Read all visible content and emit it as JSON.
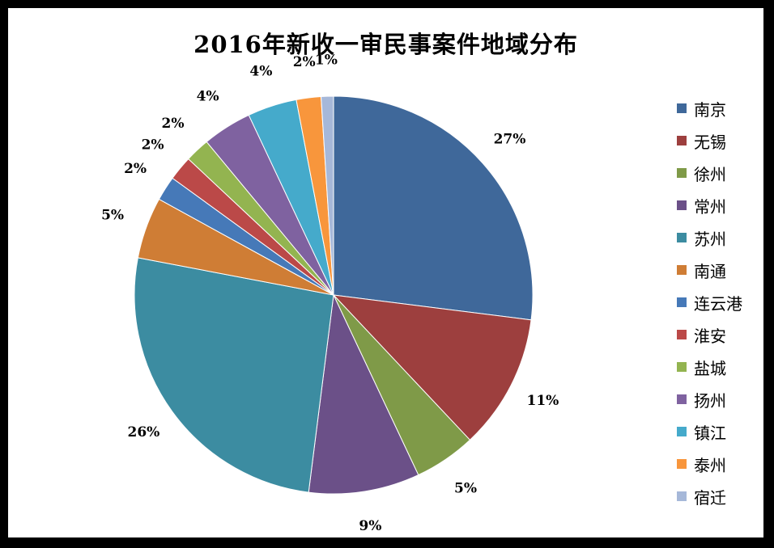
{
  "chart_data": {
    "type": "pie",
    "title": "2016年新收一审民事案件地域分布",
    "legend_position": "right",
    "categories": [
      "南京",
      "无锡",
      "徐州",
      "常州",
      "苏州",
      "南通",
      "连云港",
      "淮安",
      "盐城",
      "扬州",
      "镇江",
      "泰州",
      "宿迁"
    ],
    "values": [
      27,
      11,
      5,
      9,
      26,
      5,
      2,
      2,
      2,
      4,
      4,
      2,
      1
    ],
    "labels": [
      "27%",
      "11%",
      "5%",
      "9%",
      "26%",
      "5%",
      "2%",
      "2%",
      "2%",
      "4%",
      "4%",
      "2%",
      "1%"
    ],
    "colors": [
      "#3F689A",
      "#9D3F3E",
      "#7F9A48",
      "#6B5088",
      "#3C8CA1",
      "#CF7D35",
      "#4679B8",
      "#BB4948",
      "#93B450",
      "#7F62A0",
      "#45AACB",
      "#F8963C",
      "#A6B8D9"
    ]
  }
}
